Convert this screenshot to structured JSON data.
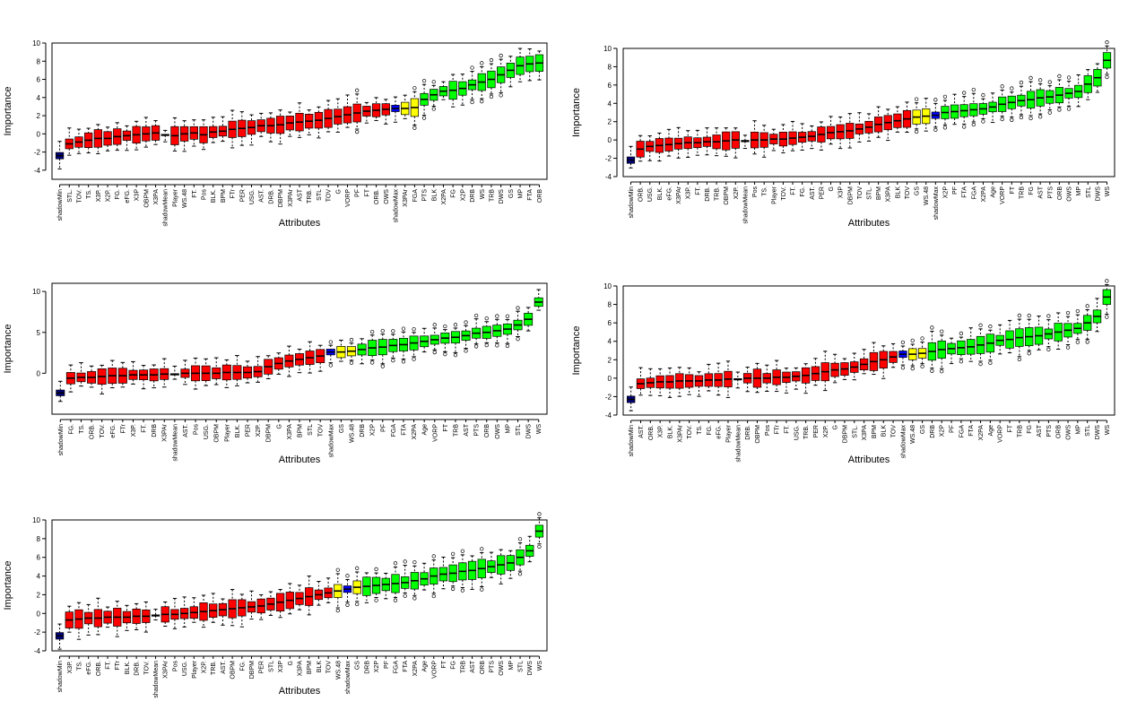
{
  "colors": {
    "rejected": "#ff0000",
    "tentative": "#ffff00",
    "confirmed": "#00ff00",
    "shadowMin": "#000080",
    "shadowMean": "#000000",
    "shadowMax": "#0000ff"
  },
  "chart_data": [
    {
      "type": "boxplot",
      "xlabel": "Attributes",
      "ylabel": "Importance",
      "ylim": [
        -5,
        10
      ],
      "yticks": [
        -4,
        -2,
        0,
        2,
        4,
        6,
        8,
        10
      ],
      "categories": [
        "shadowMin",
        "STL.",
        "TOV.",
        "TS.",
        "X3P.",
        "X2P.",
        "FG.",
        "eFG.",
        "X3P",
        "OBPM",
        "X3PA",
        "shadowMean",
        "Player",
        "WS.48",
        "FT.",
        "Pos",
        "BLK.",
        "BPM",
        "FTr",
        "PER",
        "USG.",
        "AST.",
        "DRB.",
        "DBPM",
        "X3PAr",
        "AST",
        "TRB.",
        "STL",
        "TOV",
        "G",
        "VORP",
        "PF",
        "FT",
        "ORB.",
        "OWS",
        "shadowMax",
        "X3PAr",
        "FGA",
        "PTS",
        "BLK",
        "X2PA",
        "FG",
        "X2P",
        "DRB",
        "WS",
        "TRB",
        "DWS",
        "GS",
        "MP",
        "FTA",
        "ORB"
      ],
      "medians": [
        -2.4,
        -1.1,
        -0.9,
        -0.7,
        -0.5,
        -0.5,
        -0.3,
        -0.2,
        -0.1,
        0.0,
        0.1,
        -0.1,
        -0.2,
        0.0,
        0.1,
        -0.1,
        0.2,
        0.3,
        0.5,
        0.6,
        0.7,
        0.9,
        0.9,
        1.0,
        1.2,
        1.3,
        1.4,
        1.5,
        1.7,
        1.9,
        2.1,
        2.3,
        2.5,
        2.6,
        2.7,
        2.8,
        2.8,
        2.9,
        3.8,
        4.3,
        4.7,
        4.8,
        5.0,
        5.4,
        5.7,
        6.0,
        6.5,
        7.0,
        7.5,
        7.7,
        7.8
      ],
      "status": [
        "shadowMin",
        "rejected",
        "rejected",
        "rejected",
        "rejected",
        "rejected",
        "rejected",
        "rejected",
        "rejected",
        "rejected",
        "rejected",
        "shadowMean",
        "rejected",
        "rejected",
        "rejected",
        "rejected",
        "rejected",
        "rejected",
        "rejected",
        "rejected",
        "rejected",
        "rejected",
        "rejected",
        "rejected",
        "rejected",
        "rejected",
        "rejected",
        "rejected",
        "rejected",
        "rejected",
        "rejected",
        "rejected",
        "rejected",
        "rejected",
        "rejected",
        "shadowMax",
        "tentative",
        "tentative",
        "confirmed",
        "confirmed",
        "confirmed",
        "confirmed",
        "confirmed",
        "confirmed",
        "confirmed",
        "confirmed",
        "confirmed",
        "confirmed",
        "confirmed",
        "confirmed",
        "confirmed"
      ]
    },
    {
      "type": "boxplot",
      "xlabel": "Attributes",
      "ylabel": "Importance",
      "ylim": [
        -4,
        10
      ],
      "yticks": [
        -4,
        -2,
        0,
        2,
        4,
        6,
        8,
        10
      ],
      "categories": [
        "shadowMin",
        "ORB.",
        "USG.",
        "BLK.",
        "eFG.",
        "X3PAr",
        "X3P.",
        "FT.",
        "DRB.",
        "TRB.",
        "OBPM",
        "X2P.",
        "shadowMean",
        "Pos",
        "TS.",
        "Player",
        "TOV.",
        "FT.",
        "FG.",
        "AST.",
        "PER",
        "G",
        "X3P",
        "DBPM",
        "TOV",
        "STL.",
        "BPM",
        "X3PA",
        "BLK",
        "TOV",
        "GS",
        "WS.48",
        "shadowMax",
        "X2P",
        "PF",
        "FTA",
        "FGA",
        "X2PA",
        "Age",
        "VORP",
        "FT",
        "TRB",
        "FG",
        "AST",
        "PTS",
        "ORB",
        "OWS",
        "MP",
        "STL",
        "DWS",
        "WS"
      ],
      "medians": [
        -2.2,
        -1.0,
        -0.7,
        -0.6,
        -0.5,
        -0.4,
        -0.3,
        -0.3,
        -0.2,
        -0.2,
        -0.1,
        0.0,
        -0.1,
        0.0,
        0.0,
        0.1,
        0.1,
        0.2,
        0.3,
        0.4,
        0.6,
        0.8,
        0.9,
        1.0,
        1.2,
        1.4,
        1.7,
        1.9,
        2.1,
        2.3,
        2.5,
        2.6,
        2.7,
        3.0,
        3.1,
        3.2,
        3.3,
        3.4,
        3.6,
        3.9,
        4.1,
        4.3,
        4.4,
        4.6,
        4.7,
        4.9,
        5.1,
        5.3,
        6.1,
        6.8,
        8.7
      ],
      "status": [
        "shadowMin",
        "rejected",
        "rejected",
        "rejected",
        "rejected",
        "rejected",
        "rejected",
        "rejected",
        "rejected",
        "rejected",
        "rejected",
        "rejected",
        "shadowMean",
        "rejected",
        "rejected",
        "rejected",
        "rejected",
        "rejected",
        "rejected",
        "rejected",
        "rejected",
        "rejected",
        "rejected",
        "rejected",
        "rejected",
        "rejected",
        "rejected",
        "rejected",
        "rejected",
        "rejected",
        "tentative",
        "tentative",
        "shadowMax",
        "confirmed",
        "confirmed",
        "confirmed",
        "confirmed",
        "confirmed",
        "confirmed",
        "confirmed",
        "confirmed",
        "confirmed",
        "confirmed",
        "confirmed",
        "confirmed",
        "confirmed",
        "confirmed",
        "confirmed",
        "confirmed",
        "confirmed",
        "confirmed"
      ]
    },
    {
      "type": "boxplot",
      "xlabel": "Attributes",
      "ylabel": "Importance",
      "ylim": [
        -5,
        11
      ],
      "yticks": [
        0,
        5,
        10
      ],
      "categories": [
        "shadowMin",
        "FG.",
        "TS.",
        "ORB.",
        "TOV.",
        "eFG.",
        "FTr",
        "X3P.",
        "FT.",
        "DRB",
        "X3PAr",
        "shadowMean",
        "AST.",
        "Pos",
        "USG.",
        "OBPM",
        "Player",
        "BLK.",
        "PER",
        "X2P.",
        "DBPM",
        "G",
        "X3PA",
        "BPM",
        "STL",
        "TOV",
        "shadowMax",
        "GS",
        "WS.48",
        "DRB",
        "X2P",
        "PF",
        "FGA",
        "FTA",
        "X2PA",
        "Age",
        "VORP",
        "FT",
        "TRB",
        "AST",
        "PTS",
        "ORB",
        "OWS",
        "MP",
        "STL",
        "DWS",
        "WS"
      ],
      "medians": [
        -2.4,
        -0.6,
        -0.5,
        -0.5,
        -0.4,
        -0.3,
        -0.3,
        -0.2,
        -0.2,
        -0.2,
        -0.1,
        -0.1,
        0.0,
        0.0,
        0.0,
        0.0,
        0.1,
        0.1,
        0.1,
        0.2,
        0.8,
        1.2,
        1.5,
        1.7,
        1.9,
        2.1,
        2.6,
        2.6,
        2.7,
        2.9,
        3.1,
        3.2,
        3.4,
        3.5,
        3.7,
        3.9,
        4.1,
        4.3,
        4.4,
        4.6,
        4.9,
        5.0,
        5.2,
        5.4,
        5.9,
        6.6,
        8.7
      ],
      "status": [
        "shadowMin",
        "rejected",
        "rejected",
        "rejected",
        "rejected",
        "rejected",
        "rejected",
        "rejected",
        "rejected",
        "rejected",
        "rejected",
        "shadowMean",
        "rejected",
        "rejected",
        "rejected",
        "rejected",
        "rejected",
        "rejected",
        "rejected",
        "rejected",
        "rejected",
        "rejected",
        "rejected",
        "rejected",
        "rejected",
        "rejected",
        "shadowMax",
        "tentative",
        "tentative",
        "confirmed",
        "confirmed",
        "confirmed",
        "confirmed",
        "confirmed",
        "confirmed",
        "confirmed",
        "confirmed",
        "confirmed",
        "confirmed",
        "confirmed",
        "confirmed",
        "confirmed",
        "confirmed",
        "confirmed",
        "confirmed",
        "confirmed",
        "confirmed"
      ]
    },
    {
      "type": "boxplot",
      "xlabel": "Attributes",
      "ylabel": "Importance",
      "ylim": [
        -4,
        10
      ],
      "yticks": [
        -4,
        -2,
        0,
        2,
        4,
        6,
        8,
        10
      ],
      "categories": [
        "shadowMin",
        "AST.",
        "ORB.",
        "X3P.",
        "BLK.",
        "X3PAr",
        "TOV.",
        "TS.",
        "FG.",
        "eFG.",
        "Player",
        "shadowMean",
        "DRB.",
        "OBPM",
        "Pos",
        "FTr",
        "FT.",
        "USG.",
        "TRB.",
        "PER",
        "X2P.",
        "G",
        "DBPM",
        "STL.",
        "X3PA",
        "BPM",
        "BLK",
        "TOV",
        "shadowMax",
        "WS.48",
        "GS",
        "DRB",
        "X2P",
        "PF",
        "FGA",
        "FTA",
        "X2PA",
        "Age",
        "VORP",
        "FT",
        "TRB",
        "FG",
        "AST",
        "PTS",
        "ORB",
        "OWS",
        "MP",
        "STL",
        "DWS",
        "WS"
      ],
      "medians": [
        -2.3,
        -0.6,
        -0.5,
        -0.4,
        -0.4,
        -0.3,
        -0.3,
        -0.3,
        -0.2,
        -0.2,
        -0.1,
        -0.1,
        0.0,
        0.0,
        0.0,
        0.1,
        0.1,
        0.2,
        0.3,
        0.5,
        0.7,
        0.9,
        1.0,
        1.2,
        1.5,
        1.8,
        2.0,
        2.3,
        2.6,
        2.6,
        2.7,
        2.9,
        3.1,
        3.2,
        3.3,
        3.4,
        3.6,
        3.8,
        4.1,
        4.2,
        4.4,
        4.5,
        4.6,
        4.8,
        5.0,
        5.2,
        5.4,
        6.0,
        6.7,
        8.8
      ],
      "status": [
        "shadowMin",
        "rejected",
        "rejected",
        "rejected",
        "rejected",
        "rejected",
        "rejected",
        "rejected",
        "rejected",
        "rejected",
        "rejected",
        "shadowMean",
        "rejected",
        "rejected",
        "rejected",
        "rejected",
        "rejected",
        "rejected",
        "rejected",
        "rejected",
        "rejected",
        "rejected",
        "rejected",
        "rejected",
        "rejected",
        "rejected",
        "rejected",
        "rejected",
        "shadowMax",
        "tentative",
        "tentative",
        "confirmed",
        "confirmed",
        "confirmed",
        "confirmed",
        "confirmed",
        "confirmed",
        "confirmed",
        "confirmed",
        "confirmed",
        "confirmed",
        "confirmed",
        "confirmed",
        "confirmed",
        "confirmed",
        "confirmed",
        "confirmed",
        "confirmed",
        "confirmed",
        "confirmed"
      ]
    },
    {
      "type": "boxplot",
      "xlabel": "Attributes",
      "ylabel": "Importance",
      "ylim": [
        -4,
        10
      ],
      "yticks": [
        -4,
        -2,
        0,
        2,
        4,
        6,
        8,
        10
      ],
      "categories": [
        "shadowMin",
        "X3P.",
        "TS.",
        "eFG.",
        "ORB.",
        "FT.",
        "FTr",
        "BLK.",
        "DRB.",
        "TOV.",
        "shadowMean",
        "X3PAr",
        "Pos",
        "USG.",
        "Player",
        "X2P.",
        "TRB.",
        "AST.",
        "OBPM",
        "FG.",
        "DBPM",
        "PER",
        "STL",
        "X3P",
        "G",
        "X3PA",
        "BPM",
        "BLK",
        "TOV",
        "WS.48",
        "shadowMax",
        "GS",
        "DRB",
        "X2P",
        "PF",
        "FGA",
        "FTA",
        "X2PA",
        "Age",
        "VORP",
        "FT",
        "FG",
        "TRB",
        "AST",
        "ORB",
        "PTS",
        "OWS",
        "MP",
        "STL",
        "DWS",
        "WS"
      ],
      "medians": [
        -2.4,
        -0.7,
        -0.6,
        -0.5,
        -0.5,
        -0.4,
        -0.4,
        -0.4,
        -0.3,
        -0.3,
        -0.2,
        -0.1,
        -0.1,
        0.0,
        0.1,
        0.2,
        0.3,
        0.4,
        0.5,
        0.6,
        0.7,
        0.8,
        1.0,
        1.2,
        1.4,
        1.6,
        1.8,
        2.0,
        2.2,
        2.4,
        2.6,
        2.8,
        2.9,
        3.0,
        3.1,
        3.2,
        3.3,
        3.5,
        3.7,
        4.0,
        4.2,
        4.3,
        4.5,
        4.6,
        4.8,
        5.0,
        5.2,
        5.4,
        6.0,
        6.7,
        8.8
      ],
      "status": [
        "shadowMin",
        "rejected",
        "rejected",
        "rejected",
        "rejected",
        "rejected",
        "rejected",
        "rejected",
        "rejected",
        "rejected",
        "shadowMean",
        "rejected",
        "rejected",
        "rejected",
        "rejected",
        "rejected",
        "rejected",
        "rejected",
        "rejected",
        "rejected",
        "rejected",
        "rejected",
        "rejected",
        "rejected",
        "rejected",
        "rejected",
        "rejected",
        "rejected",
        "rejected",
        "tentative",
        "shadowMax",
        "tentative",
        "confirmed",
        "confirmed",
        "confirmed",
        "confirmed",
        "confirmed",
        "confirmed",
        "confirmed",
        "confirmed",
        "confirmed",
        "confirmed",
        "confirmed",
        "confirmed",
        "confirmed",
        "confirmed",
        "confirmed",
        "confirmed",
        "confirmed",
        "confirmed",
        "confirmed"
      ]
    }
  ]
}
